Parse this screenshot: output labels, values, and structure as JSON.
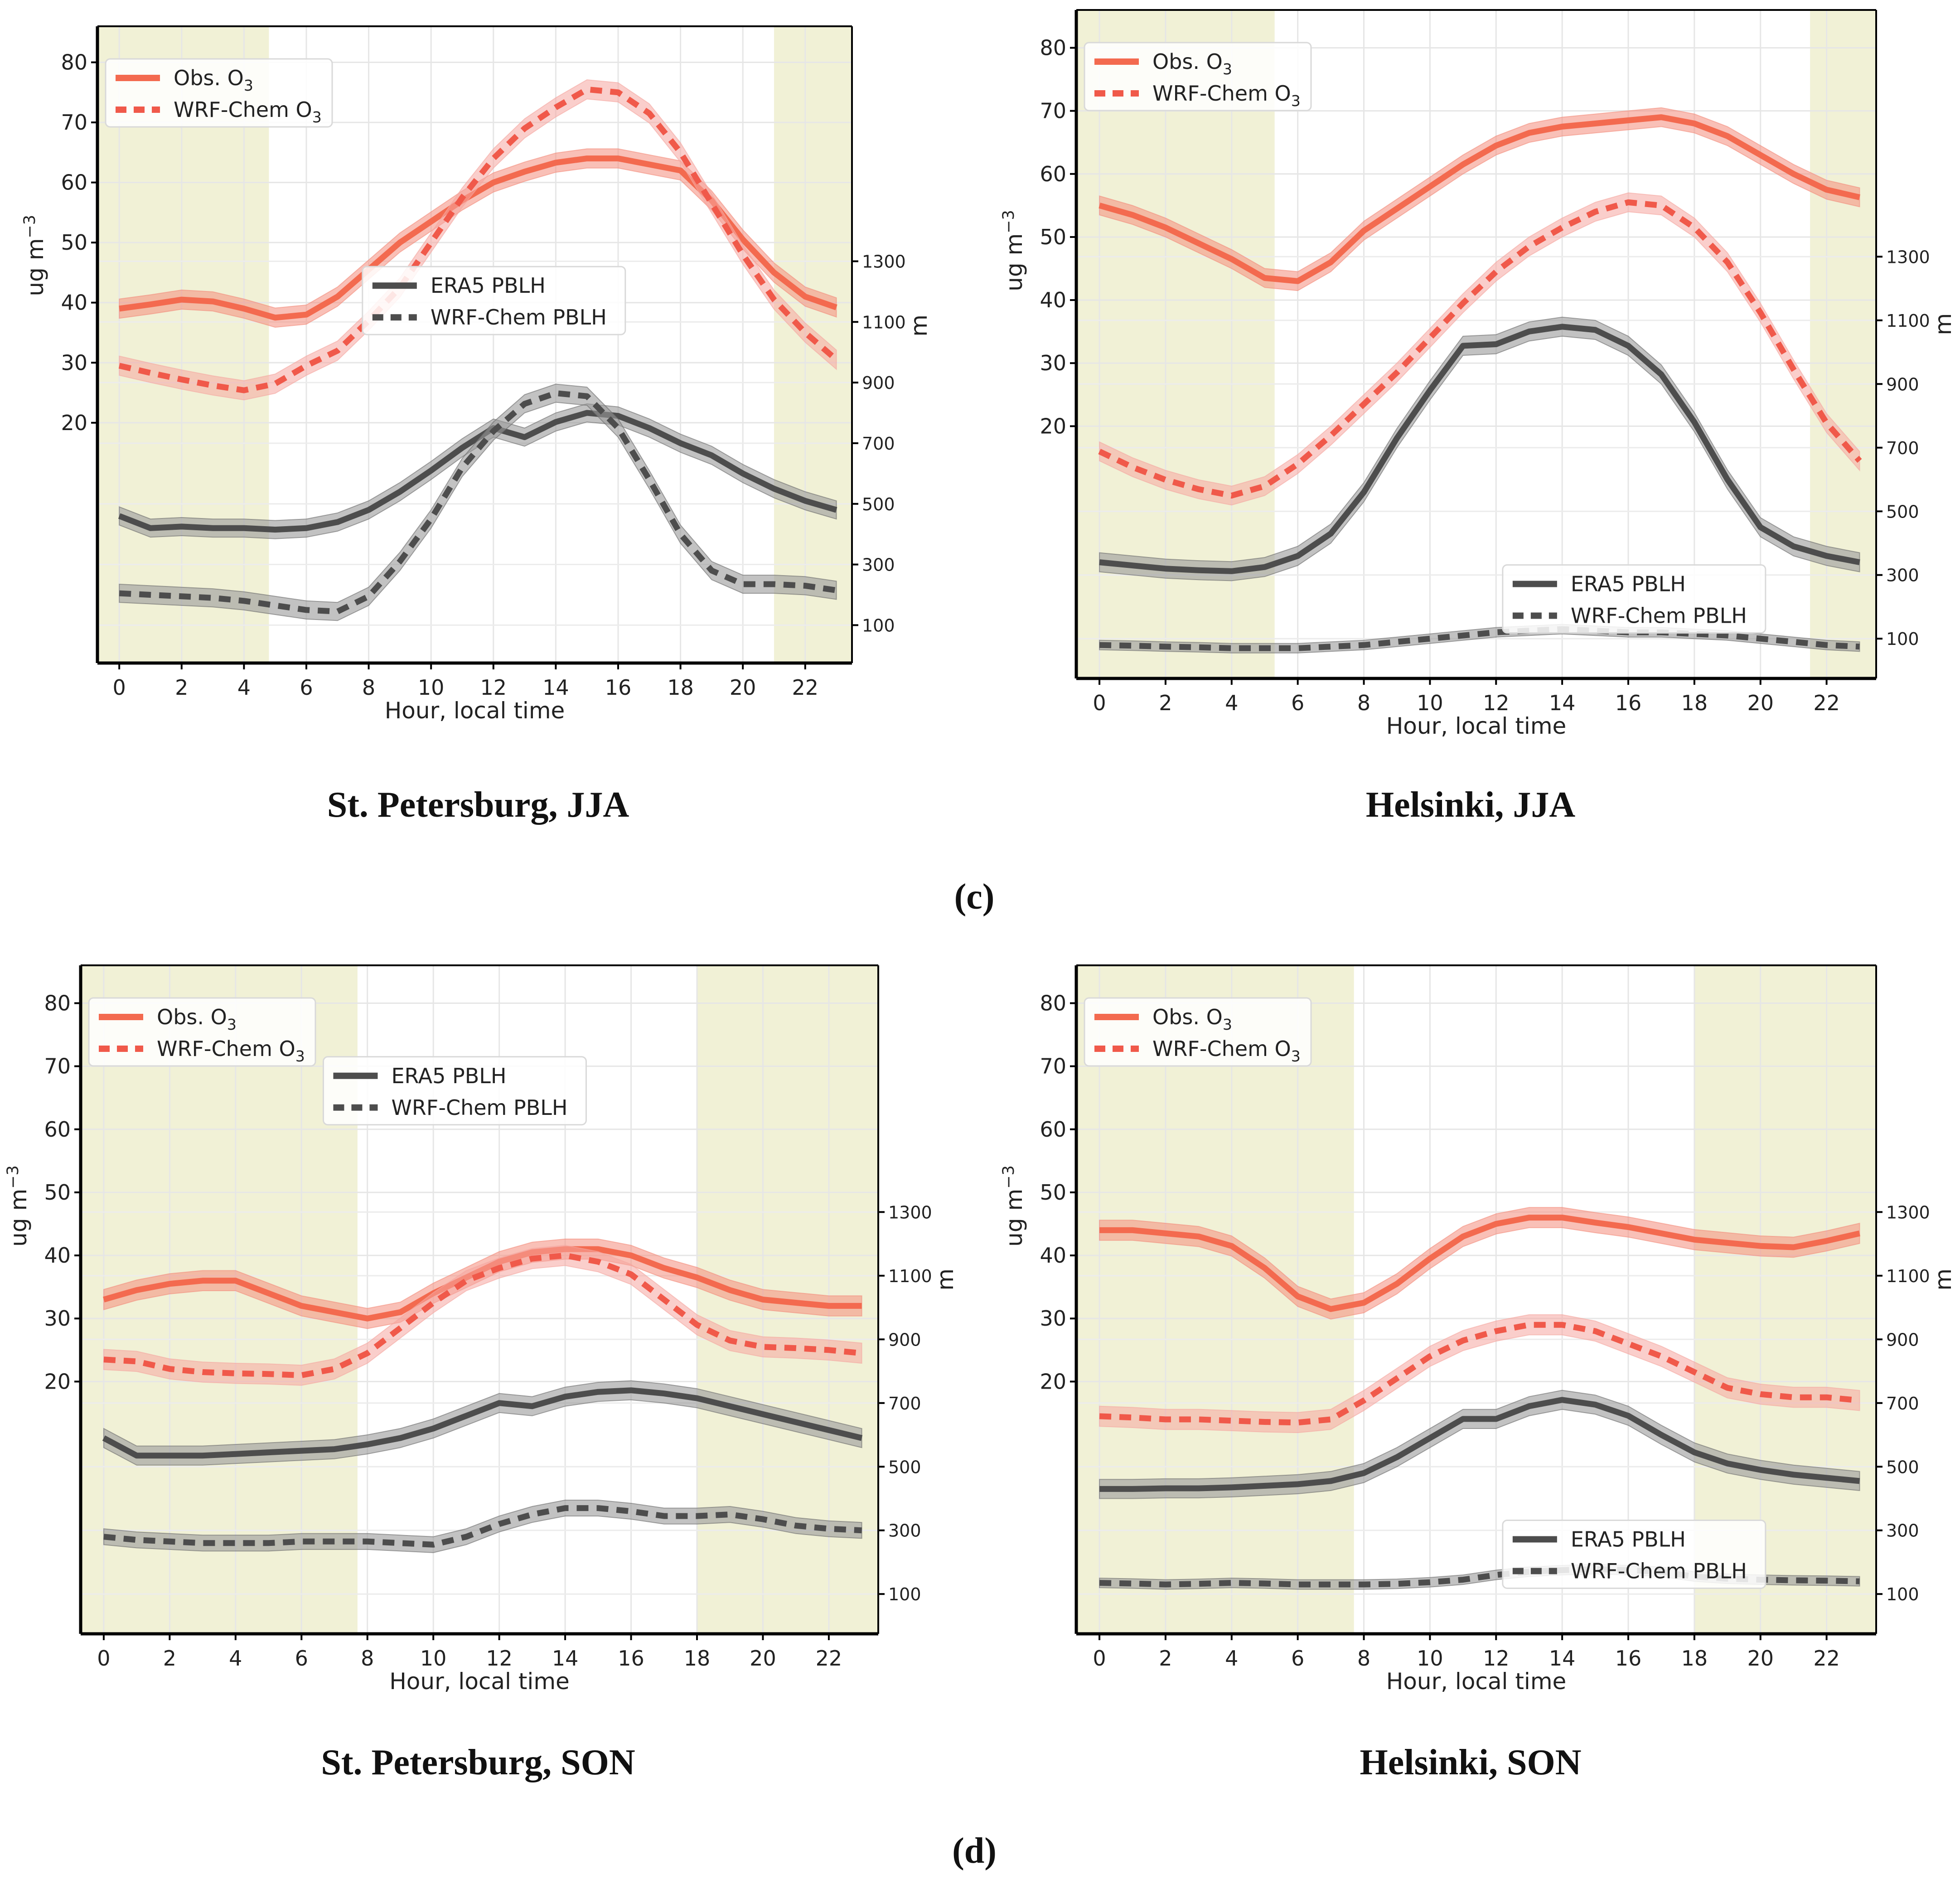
{
  "row_labels": [
    "(c)",
    "(d)"
  ],
  "colors": {
    "obs": "#f36a4f",
    "obs_band": "#f48c7b",
    "wrf_o3": "#f0594a",
    "wrf_o3_band": "#f5a6a0",
    "pblh": "#4d4d4d",
    "pblh_band": "#9a9a9a",
    "night": "#f1f1d6"
  },
  "chart_data": [
    {
      "type": "line",
      "title": "St. Petersburg, JJA",
      "xlabel": "Hour, local time",
      "ylabel": "ug m−3",
      "ylabel_right": "m",
      "xlim": [
        -0.7,
        23.5
      ],
      "ylim": [
        -20,
        86
      ],
      "ylim_right": [
        -25,
        2075
      ],
      "xticks": [
        0,
        2,
        4,
        6,
        8,
        10,
        12,
        14,
        16,
        18,
        20,
        22
      ],
      "yticks": [
        20,
        30,
        40,
        50,
        60,
        70,
        80
      ],
      "yticks_right": [
        100,
        300,
        500,
        700,
        900,
        1100,
        1300
      ],
      "night": [
        [
          -0.7,
          4.8
        ],
        [
          21.0,
          23.5
        ]
      ],
      "legend_o3": {
        "position": "upper-left",
        "entries": [
          "Obs. O3",
          "WRF-Chem O3"
        ]
      },
      "legend_pblh": {
        "position": "center",
        "entries": [
          "ERA5 PBLH",
          "WRF-Chem PBLH"
        ]
      },
      "x": [
        0,
        1,
        2,
        3,
        4,
        5,
        6,
        7,
        8,
        9,
        10,
        11,
        12,
        13,
        14,
        15,
        16,
        17,
        18,
        19,
        20,
        21,
        22,
        23
      ],
      "series": [
        {
          "name": "Obs. O3",
          "axis": "left",
          "style": "solid",
          "band": 1.6,
          "values": [
            39,
            39.7,
            40.5,
            40.2,
            39,
            37.5,
            38,
            41,
            45.5,
            50,
            53.5,
            57,
            60,
            61.8,
            63.3,
            64,
            64,
            63,
            62,
            57,
            50.5,
            45,
            41,
            39.2
          ]
        },
        {
          "name": "WRF-Chem O3",
          "axis": "left",
          "style": "dashed",
          "band": 1.6,
          "values": [
            29.5,
            28.3,
            27.2,
            26.2,
            25.4,
            26.5,
            29.5,
            32,
            37,
            42.5,
            50,
            57.5,
            64,
            69,
            72.5,
            75.5,
            75,
            71.5,
            65,
            56.5,
            48,
            40.5,
            35,
            30.5
          ]
        },
        {
          "name": "ERA5 PBLH",
          "axis": "right",
          "style": "solid",
          "band": 30,
          "values": [
            460,
            420,
            425,
            420,
            420,
            415,
            420,
            440,
            480,
            540,
            610,
            685,
            750,
            720,
            770,
            800,
            790,
            750,
            700,
            660,
            600,
            550,
            510,
            480
          ]
        },
        {
          "name": "WRF-Chem PBLH",
          "axis": "right",
          "style": "dashed",
          "band": 30,
          "values": [
            205,
            200,
            195,
            190,
            180,
            165,
            150,
            145,
            195,
            310,
            450,
            620,
            740,
            830,
            865,
            855,
            750,
            580,
            400,
            280,
            235,
            235,
            230,
            215
          ]
        }
      ]
    },
    {
      "type": "line",
      "title": "Helsinki, JJA",
      "xlabel": "Hour, local time",
      "ylabel": "ug m−3",
      "ylabel_right": "m",
      "xlim": [
        -0.7,
        23.5
      ],
      "ylim": [
        -20,
        86
      ],
      "ylim_right": [
        -25,
        2075
      ],
      "xticks": [
        0,
        2,
        4,
        6,
        8,
        10,
        12,
        14,
        16,
        18,
        20,
        22
      ],
      "yticks": [
        20,
        30,
        40,
        50,
        60,
        70,
        80
      ],
      "yticks_right": [
        100,
        300,
        500,
        700,
        900,
        1100,
        1300
      ],
      "night": [
        [
          -0.7,
          5.3
        ],
        [
          21.5,
          23.5
        ]
      ],
      "legend_o3": {
        "position": "upper-left",
        "entries": [
          "Obs. O3",
          "WRF-Chem O3"
        ]
      },
      "legend_pblh": {
        "position": "lower-right",
        "entries": [
          "ERA5 PBLH",
          "WRF-Chem PBLH"
        ]
      },
      "x": [
        0,
        1,
        2,
        3,
        4,
        5,
        6,
        7,
        8,
        9,
        10,
        11,
        12,
        13,
        14,
        15,
        16,
        17,
        18,
        19,
        20,
        21,
        22,
        23
      ],
      "series": [
        {
          "name": "Obs. O3",
          "axis": "left",
          "style": "solid",
          "band": 1.5,
          "values": [
            55,
            53.5,
            51.5,
            49,
            46.5,
            43.5,
            43,
            46,
            51,
            54.5,
            58,
            61.5,
            64.5,
            66.5,
            67.5,
            68,
            68.5,
            69,
            68,
            66,
            63,
            60,
            57.5,
            56.3
          ]
        },
        {
          "name": "WRF-Chem O3",
          "axis": "left",
          "style": "dashed",
          "band": 1.5,
          "values": [
            16,
            13.5,
            11.5,
            10,
            9,
            10.5,
            14,
            18.5,
            23.5,
            28.5,
            34,
            39.5,
            44.5,
            48.5,
            51.5,
            54,
            55.5,
            55,
            51.5,
            46,
            38,
            29,
            20.5,
            14.5
          ]
        },
        {
          "name": "ERA5 PBLH",
          "axis": "right",
          "style": "solid",
          "band": 30,
          "values": [
            340,
            330,
            320,
            315,
            312,
            325,
            360,
            430,
            560,
            730,
            880,
            1020,
            1025,
            1065,
            1080,
            1070,
            1020,
            930,
            780,
            600,
            450,
            390,
            360,
            340
          ]
        },
        {
          "name": "WRF-Chem PBLH",
          "axis": "right",
          "style": "dashed",
          "band": 15,
          "values": [
            80,
            78,
            75,
            73,
            70,
            70,
            70,
            75,
            80,
            90,
            100,
            110,
            120,
            125,
            130,
            125,
            120,
            120,
            115,
            110,
            100,
            90,
            80,
            75
          ]
        }
      ]
    },
    {
      "type": "line",
      "title": "St. Petersburg, SON",
      "xlabel": "Hour, local time",
      "ylabel": "ug m−3",
      "ylabel_right": "m",
      "xlim": [
        -0.7,
        23.5
      ],
      "ylim": [
        -20,
        86
      ],
      "ylim_right": [
        -25,
        2075
      ],
      "xticks": [
        0,
        2,
        4,
        6,
        8,
        10,
        12,
        14,
        16,
        18,
        20,
        22
      ],
      "yticks": [
        20,
        30,
        40,
        50,
        60,
        70,
        80
      ],
      "yticks_right": [
        100,
        300,
        500,
        700,
        900,
        1100,
        1300
      ],
      "night": [
        [
          -0.7,
          7.7
        ],
        [
          18.0,
          23.5
        ]
      ],
      "legend_o3": {
        "position": "upper-left",
        "entries": [
          "Obs. O3",
          "WRF-Chem O3"
        ]
      },
      "legend_pblh": {
        "position": "upper-center",
        "entries": [
          "ERA5 PBLH",
          "WRF-Chem PBLH"
        ]
      },
      "x": [
        0,
        1,
        2,
        3,
        4,
        5,
        6,
        7,
        8,
        9,
        10,
        11,
        12,
        13,
        14,
        15,
        16,
        17,
        18,
        19,
        20,
        21,
        22,
        23
      ],
      "series": [
        {
          "name": "Obs. O3",
          "axis": "left",
          "style": "solid",
          "band": 1.6,
          "values": [
            33,
            34.5,
            35.5,
            36,
            36,
            34,
            32,
            31,
            30,
            31,
            34,
            36.5,
            39,
            40.5,
            41,
            41,
            40,
            38,
            36.5,
            34.5,
            33,
            32.5,
            32,
            32
          ]
        },
        {
          "name": "WRF-Chem O3",
          "axis": "left",
          "style": "dashed",
          "band": 1.6,
          "values": [
            23.5,
            23.2,
            22,
            21.5,
            21.3,
            21.2,
            21,
            22,
            24.5,
            28.5,
            32.5,
            36,
            38,
            39.5,
            40,
            39,
            37,
            33,
            29,
            26.5,
            25.5,
            25.3,
            25,
            24.5
          ]
        },
        {
          "name": "ERA5 PBLH",
          "axis": "right",
          "style": "solid",
          "band": 30,
          "values": [
            590,
            535,
            535,
            535,
            540,
            545,
            550,
            555,
            570,
            590,
            620,
            660,
            700,
            690,
            720,
            735,
            740,
            730,
            715,
            690,
            665,
            640,
            615,
            590
          ]
        },
        {
          "name": "WRF-Chem PBLH",
          "axis": "right",
          "style": "dashed",
          "band": 25,
          "values": [
            280,
            270,
            265,
            260,
            260,
            260,
            265,
            265,
            265,
            260,
            255,
            280,
            320,
            350,
            370,
            370,
            360,
            345,
            345,
            350,
            335,
            315,
            305,
            300
          ]
        }
      ]
    },
    {
      "type": "line",
      "title": "Helsinki, SON",
      "xlabel": "Hour, local time",
      "ylabel": "ug m−3",
      "ylabel_right": "m",
      "xlim": [
        -0.7,
        23.5
      ],
      "ylim": [
        -20,
        86
      ],
      "ylim_right": [
        -25,
        2075
      ],
      "xticks": [
        0,
        2,
        4,
        6,
        8,
        10,
        12,
        14,
        16,
        18,
        20,
        22
      ],
      "yticks": [
        20,
        30,
        40,
        50,
        60,
        70,
        80
      ],
      "yticks_right": [
        100,
        300,
        500,
        700,
        900,
        1100,
        1300
      ],
      "night": [
        [
          -0.7,
          7.7
        ],
        [
          18.0,
          23.5
        ]
      ],
      "legend_o3": {
        "position": "upper-left",
        "entries": [
          "Obs. O3",
          "WRF-Chem O3"
        ]
      },
      "legend_pblh": {
        "position": "lower-right",
        "entries": [
          "ERA5 PBLH",
          "WRF-Chem PBLH"
        ]
      },
      "x": [
        0,
        1,
        2,
        3,
        4,
        5,
        6,
        7,
        8,
        9,
        10,
        11,
        12,
        13,
        14,
        15,
        16,
        17,
        18,
        19,
        20,
        21,
        22,
        23
      ],
      "series": [
        {
          "name": "Obs. O3",
          "axis": "left",
          "style": "solid",
          "band": 1.6,
          "values": [
            44,
            44,
            43.5,
            43,
            41.5,
            38,
            33.5,
            31.5,
            32.5,
            35.5,
            39.5,
            43,
            45,
            46,
            46,
            45.2,
            44.5,
            43.5,
            42.5,
            42,
            41.5,
            41.3,
            42.3,
            43.5
          ]
        },
        {
          "name": "WRF-Chem O3",
          "axis": "left",
          "style": "dashed",
          "band": 1.6,
          "values": [
            14.5,
            14.3,
            14,
            14,
            13.8,
            13.6,
            13.5,
            14,
            17,
            20.5,
            24,
            26.5,
            28,
            29,
            29,
            28,
            26,
            24,
            21.5,
            19,
            18,
            17.5,
            17.5,
            17
          ]
        },
        {
          "name": "ERA5 PBLH",
          "axis": "right",
          "style": "solid",
          "band": 30,
          "values": [
            430,
            430,
            432,
            432,
            435,
            440,
            445,
            455,
            480,
            530,
            590,
            650,
            650,
            690,
            710,
            695,
            660,
            600,
            545,
            510,
            490,
            475,
            465,
            455
          ]
        },
        {
          "name": "WRF-Chem PBLH",
          "axis": "right",
          "style": "dashed",
          "band": 15,
          "values": [
            135,
            133,
            130,
            132,
            135,
            133,
            130,
            130,
            130,
            132,
            137,
            145,
            160,
            170,
            175,
            178,
            175,
            170,
            155,
            148,
            145,
            143,
            142,
            140
          ]
        }
      ]
    }
  ]
}
